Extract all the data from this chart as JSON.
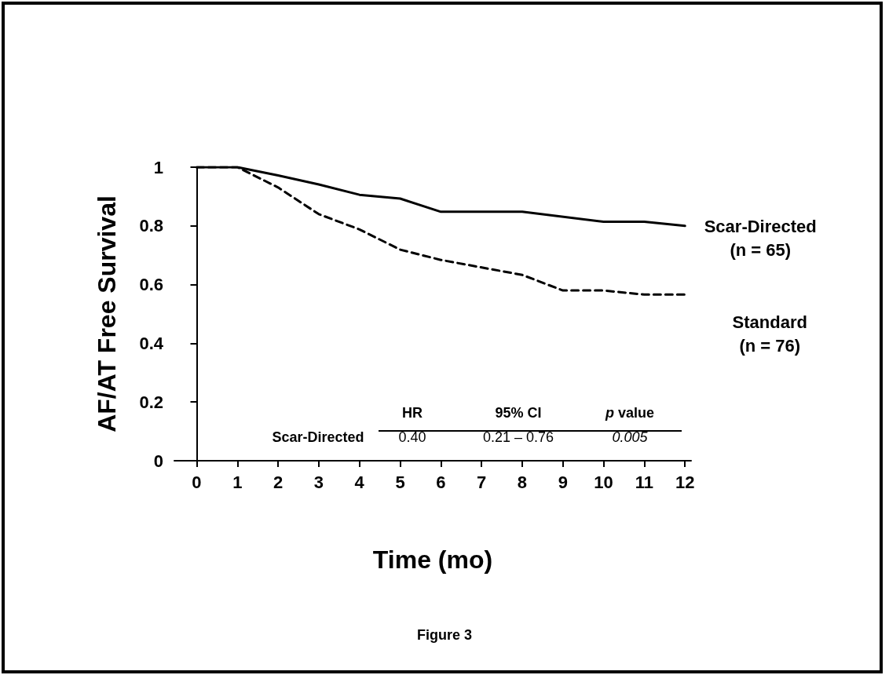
{
  "chart_data": {
    "type": "line",
    "xlabel": "Time (mo)",
    "ylabel": "AF/AT Free Survival",
    "series": [
      {
        "name": "Scar-Directed (n = 65)",
        "color": "#000000",
        "line_style": "solid",
        "x": [
          0,
          1,
          2,
          3,
          4,
          5,
          6,
          8,
          10,
          11,
          12
        ],
        "values": [
          1,
          1,
          0.972,
          0.941,
          0.906,
          0.893,
          0.848,
          0.848,
          0.814,
          0.814,
          0.8
        ]
      },
      {
        "name": "Standard (n = 76)",
        "color": "#000000",
        "line_style": "dashed",
        "x": [
          0,
          1,
          2,
          3,
          4,
          5,
          6,
          8,
          9,
          10,
          11,
          12
        ],
        "values": [
          1,
          1,
          0.931,
          0.84,
          0.788,
          0.719,
          0.684,
          0.633,
          0.58,
          0.58,
          0.566,
          0.566
        ]
      }
    ],
    "xlim": [
      -0.55,
      12.15
    ],
    "xticks": [
      0,
      1,
      2,
      3,
      4,
      5,
      6,
      7,
      8,
      9,
      10,
      11,
      12
    ],
    "ylim": [
      0,
      1
    ],
    "yticks": [
      0,
      0.2,
      0.4,
      0.6,
      0.8,
      1
    ],
    "grid": false,
    "legend": false,
    "marker": "none",
    "annotations": [
      "HR",
      "95% CI",
      "p value",
      "Scar-Directed",
      "0.40",
      "0.21 – 0.76",
      "0.005",
      "Figure 3"
    ]
  }
}
